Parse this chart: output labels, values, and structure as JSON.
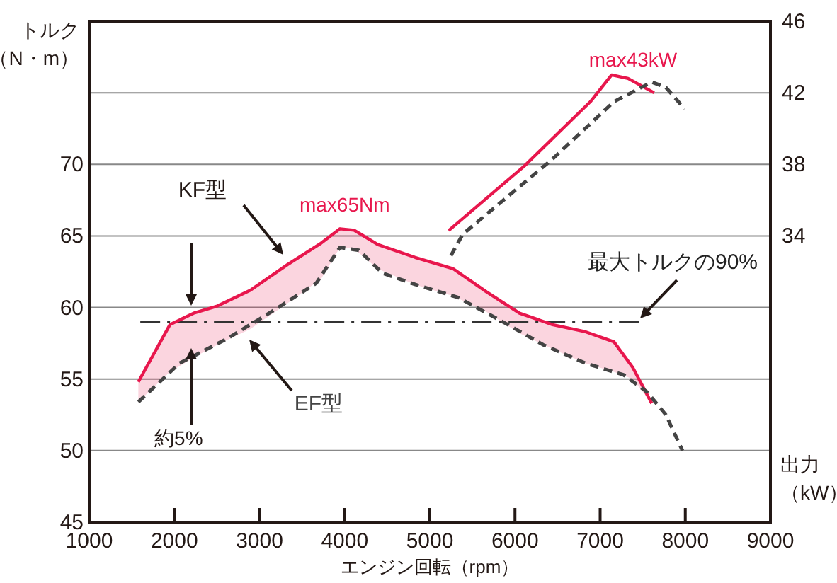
{
  "chart_data": {
    "type": "line",
    "xlabel": "エンジン回転（rpm）",
    "ylabel": "トルク（N・m）",
    "y2label": "出力（kW）",
    "xlim": [
      1000,
      9000
    ],
    "xticks": [
      1000,
      2000,
      3000,
      4000,
      5000,
      6000,
      7000,
      8000,
      9000
    ],
    "ylim": [
      45,
      80
    ],
    "yticks": [
      45,
      50,
      55,
      60,
      65,
      70,
      {
        "value": 75,
        "label": null
      }
    ],
    "y2lim": [
      18,
      46
    ],
    "y2ticks": [
      34,
      38,
      42,
      46
    ],
    "grid": "y",
    "marker": "none",
    "series": [
      {
        "name": "KF型",
        "color": "#e8174d",
        "line_style": "solid",
        "x": [
          1577,
          1948,
          2226,
          2503,
          2892,
          3330,
          3724,
          3945,
          4111,
          4389,
          4827,
          5276,
          5664,
          6053,
          6441,
          6829,
          7162,
          7384,
          7606
        ],
        "values": [
          54.8,
          58.8,
          59.6,
          60.1,
          61.2,
          63.0,
          64.5,
          65.5,
          65.4,
          64.4,
          63.5,
          62.7,
          61.1,
          59.6,
          58.8,
          58.3,
          57.6,
          55.8,
          53.3
        ],
        "upper": [
          54.8,
          58.8,
          59.6,
          60.1,
          61.2,
          63.0,
          64.5,
          65.5,
          65.4,
          64.4,
          63.5,
          62.7,
          61.1,
          59.6,
          58.8,
          58.3,
          57.6,
          55.8,
          53.3
        ],
        "lower": [
          53.4,
          55.5,
          56.5,
          57.4,
          58.5,
          60.3,
          62.0,
          64.2,
          64.1,
          62.7,
          61.6,
          60.8,
          59.7,
          58.2,
          57.1,
          56.1,
          55.5,
          55.0,
          53.3
        ]
      },
      {
        "name": "EF型",
        "color": "#444444",
        "line_style": "dashed",
        "x": [
          1577,
          2060,
          2614,
          3168,
          3667,
          3945,
          4167,
          4444,
          4832,
          5331,
          5887,
          6330,
          6829,
          7273,
          7551,
          7772,
          7967
        ],
        "values": [
          53.4,
          56.1,
          57.8,
          59.8,
          61.7,
          64.2,
          64.0,
          62.4,
          61.6,
          60.7,
          58.9,
          57.4,
          56.1,
          55.3,
          54.1,
          52.5,
          50.0
        ]
      },
      {
        "color": "#e8174d",
        "line_style": "solid",
        "axis": "y2",
        "x": [
          5221,
          6108,
          6885,
          7135,
          7328,
          7634
        ],
        "values": [
          34.3,
          37.9,
          41.5,
          43.0,
          42.8,
          42.0
        ]
      },
      {
        "color": "#444444",
        "line_style": "dashed",
        "axis": "y2",
        "x": [
          5248,
          5388,
          6441,
          7162,
          7606,
          7772,
          7993
        ],
        "values": [
          32.9,
          34.1,
          38.3,
          41.5,
          42.6,
          42.3,
          41.1
        ]
      }
    ],
    "ref_lines": [
      {
        "axis": "y",
        "value": 59,
        "label": "最大トルクの90%",
        "color": "#333333",
        "line_style": "dashed"
      }
    ],
    "annotations": [
      {
        "text": "max65Nm",
        "x": 4000,
        "y": 65.5
      },
      "max43kW",
      {
        "text": "約5%",
        "x": 2200,
        "y": 56.5
      }
    ]
  }
}
